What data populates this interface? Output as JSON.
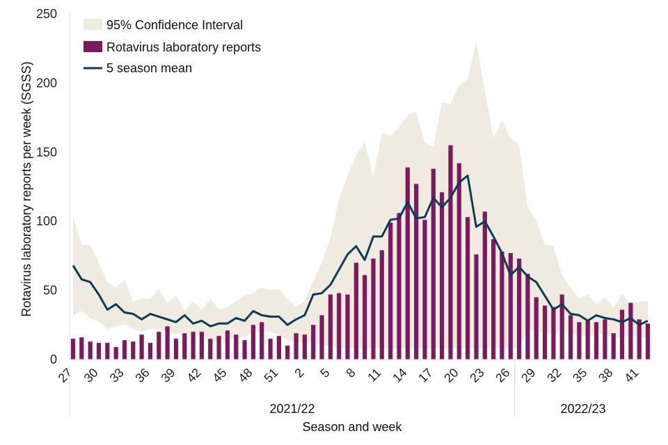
{
  "chart_data": {
    "type": "bar",
    "xlabel": "Season and week",
    "ylabel": "Rotavirus laboratory reports per week (SGSS)",
    "ylim": [
      0,
      250
    ],
    "yticks": [
      0,
      50,
      100,
      150,
      200,
      250
    ],
    "grid": false,
    "legend_position": "top-left",
    "weeks": [
      27,
      28,
      29,
      30,
      31,
      32,
      33,
      34,
      35,
      36,
      37,
      38,
      39,
      40,
      41,
      42,
      43,
      44,
      45,
      46,
      47,
      48,
      49,
      50,
      51,
      52,
      1,
      2,
      3,
      4,
      5,
      6,
      7,
      8,
      9,
      10,
      11,
      12,
      13,
      14,
      15,
      16,
      17,
      18,
      19,
      20,
      21,
      22,
      23,
      24,
      25,
      26,
      27,
      28,
      29,
      30,
      31,
      32,
      33,
      34,
      35,
      36,
      37,
      38,
      39,
      40,
      41,
      42
    ],
    "x_tick_labels": [
      "27",
      "30",
      "33",
      "36",
      "39",
      "42",
      "45",
      "48",
      "51",
      "2",
      "5",
      "8",
      "11",
      "14",
      "17",
      "20",
      "23",
      "26",
      "29",
      "32",
      "35",
      "38",
      "41"
    ],
    "seasons": [
      {
        "label": "2021/22",
        "start_index": 0,
        "end_index": 51
      },
      {
        "label": "2022/23",
        "start_index": 52,
        "end_index": 67
      }
    ],
    "series": [
      {
        "name": "Rotavirus laboratory reports",
        "type": "bar",
        "color": "#7b1a5e",
        "values": [
          15,
          16,
          13,
          12,
          12,
          9,
          14,
          13,
          18,
          12,
          20,
          24,
          15,
          19,
          20,
          20,
          15,
          17,
          21,
          18,
          14,
          25,
          27,
          15,
          17,
          10,
          19,
          18,
          25,
          32,
          47,
          48,
          47,
          70,
          61,
          73,
          79,
          99,
          106,
          139,
          127,
          101,
          138,
          121,
          155,
          142,
          103,
          76,
          107,
          87,
          78,
          77,
          73,
          62,
          45,
          39,
          38,
          47,
          32,
          27,
          28,
          27,
          29,
          19,
          36,
          41,
          29,
          26
        ]
      },
      {
        "name": "5 season mean",
        "type": "line",
        "color": "#0d3b55",
        "values": [
          68,
          58,
          56,
          47,
          36,
          40,
          34,
          33,
          29,
          33,
          31,
          29,
          27,
          32,
          26,
          28,
          24,
          26,
          26,
          30,
          28,
          35,
          32,
          31,
          31,
          25,
          29,
          32,
          47,
          48,
          54,
          65,
          76,
          82,
          72,
          89,
          89,
          101,
          102,
          114,
          102,
          103,
          117,
          110,
          117,
          128,
          133,
          96,
          100,
          89,
          77,
          61,
          67,
          60,
          56,
          46,
          36,
          40,
          33,
          32,
          28,
          32,
          30,
          29,
          27,
          30,
          25,
          28
        ]
      },
      {
        "name": "95% Confidence Interval",
        "type": "band",
        "color": "#efebe0",
        "lower": [
          32,
          35,
          30,
          27,
          22,
          24,
          25,
          22,
          20,
          22,
          22,
          20,
          18,
          20,
          16,
          18,
          12,
          14,
          14,
          16,
          16,
          20,
          20,
          20,
          18,
          14,
          12,
          12,
          12,
          10,
          10,
          8,
          8,
          8,
          8,
          8,
          8,
          8,
          8,
          8,
          8,
          8,
          8,
          8,
          8,
          8,
          8,
          8,
          8,
          8,
          8,
          8,
          8,
          22,
          20,
          20,
          18,
          22,
          18,
          18,
          16,
          18,
          18,
          16,
          16,
          18,
          16,
          16
        ],
        "upper": [
          104,
          83,
          83,
          70,
          56,
          52,
          58,
          42,
          44,
          44,
          51,
          41,
          46,
          35,
          42,
          36,
          44,
          36,
          38,
          42,
          46,
          48,
          52,
          50,
          51,
          44,
          38,
          42,
          57,
          70,
          88,
          116,
          133,
          148,
          157,
          132,
          164,
          162,
          168,
          177,
          179,
          157,
          154,
          186,
          185,
          198,
          203,
          230,
          195,
          160,
          173,
          160,
          155,
          110,
          100,
          83,
          82,
          61,
          52,
          44,
          47,
          40,
          45,
          37,
          48,
          40,
          42,
          42
        ]
      }
    ]
  }
}
